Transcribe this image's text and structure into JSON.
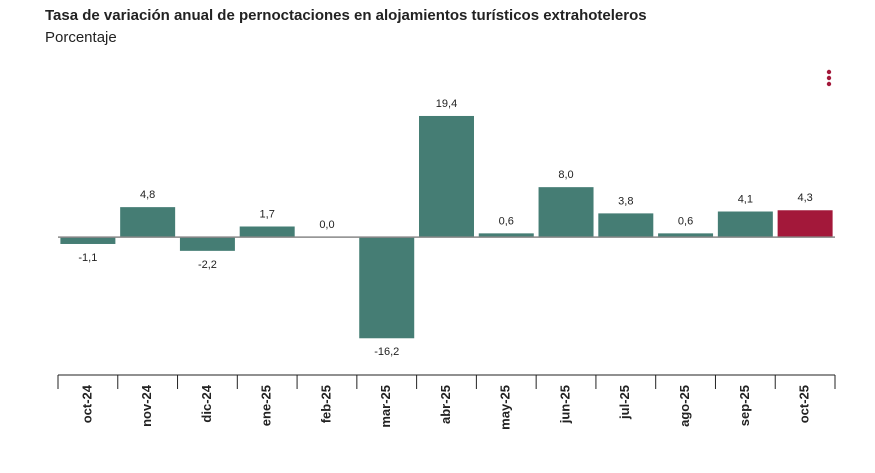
{
  "chart_data": {
    "type": "bar",
    "title": "Tasa de variación anual de pernoctaciones en alojamientos turísticos extrahoteleros",
    "subtitle": "Porcentaje",
    "categories": [
      "oct-24",
      "nov-24",
      "dic-24",
      "ene-25",
      "feb-25",
      "mar-25",
      "abr-25",
      "may-25",
      "jun-25",
      "jul-25",
      "ago-25",
      "sep-25",
      "oct-25"
    ],
    "values": [
      -1.1,
      4.8,
      -2.2,
      1.7,
      0.0,
      -16.2,
      19.4,
      0.6,
      8.0,
      3.8,
      0.6,
      4.1,
      4.3
    ],
    "value_labels": [
      "-1,1",
      "4,8",
      "-2,2",
      "1,7",
      "0,0",
      "-16,2",
      "19,4",
      "0,6",
      "8,0",
      "3,8",
      "0,6",
      "4,1",
      "4,3"
    ],
    "colors": [
      "#457d74",
      "#457d74",
      "#457d74",
      "#457d74",
      "#457d74",
      "#457d74",
      "#457d74",
      "#457d74",
      "#457d74",
      "#457d74",
      "#457d74",
      "#457d74",
      "#a3183a"
    ],
    "ylim": [
      -20,
      25
    ]
  }
}
